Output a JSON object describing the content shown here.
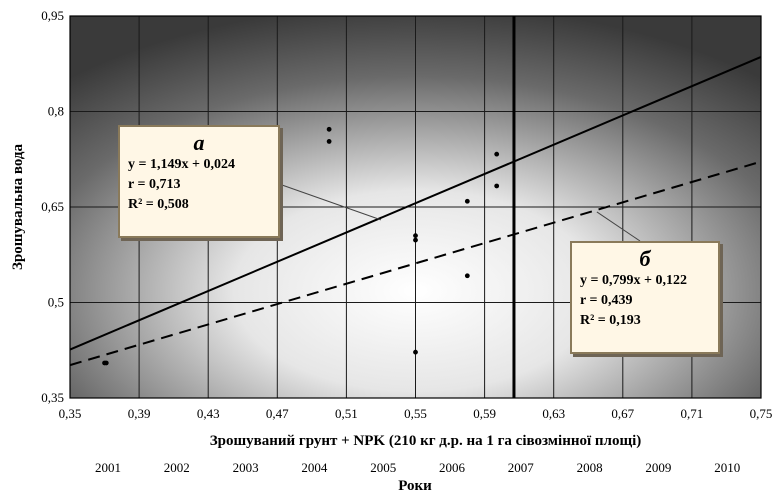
{
  "chart_data": {
    "type": "scatter",
    "xlabel": "Зрошуваний грунт + NPK (210 кг д.р. на 1 га сівозмінної площі)",
    "ylabel": "Зрошувальна  вода",
    "xlim": [
      0.35,
      0.75
    ],
    "ylim": [
      0.35,
      0.95
    ],
    "x_ticks": [
      "0,35",
      "0,39",
      "0,43",
      "0,47",
      "0,51",
      "0,55",
      "0,59",
      "0,63",
      "0,67",
      "0,71",
      "0,75"
    ],
    "y_ticks": [
      "0,35",
      "0,5",
      "0,65",
      "0,8",
      "0,95"
    ],
    "x_tick_values": [
      0.35,
      0.39,
      0.43,
      0.47,
      0.51,
      0.55,
      0.59,
      0.63,
      0.67,
      0.71,
      0.75
    ],
    "y_tick_values": [
      0.35,
      0.5,
      0.65,
      0.8,
      0.95
    ],
    "grid": true,
    "background": "dark radial gradient (gray to white center)",
    "years_label": "Роки",
    "years": [
      "2001",
      "2002",
      "2003",
      "2004",
      "2005",
      "2006",
      "2007",
      "2008",
      "2009",
      "2010"
    ],
    "vertical_marker_x": 0.607,
    "points": [
      {
        "x": 0.37,
        "y": 0.405
      },
      {
        "x": 0.371,
        "y": 0.405
      },
      {
        "x": 0.5,
        "y": 0.772
      },
      {
        "x": 0.5,
        "y": 0.753
      },
      {
        "x": 0.55,
        "y": 0.605
      },
      {
        "x": 0.55,
        "y": 0.598
      },
      {
        "x": 0.55,
        "y": 0.422
      },
      {
        "x": 0.58,
        "y": 0.659
      },
      {
        "x": 0.58,
        "y": 0.542
      },
      {
        "x": 0.597,
        "y": 0.733
      },
      {
        "x": 0.597,
        "y": 0.683
      }
    ],
    "series": [
      {
        "label": "а",
        "style": "solid",
        "slope": 1.149,
        "intercept": 0.024
      },
      {
        "label": "б",
        "style": "dashed",
        "slope": 0.799,
        "intercept": 0.122
      }
    ]
  },
  "annotations": {
    "a": {
      "letter": "а",
      "eq": "y = 1,149x + 0,024",
      "r": "r = 0,713",
      "r2": "R² = 0,508"
    },
    "b": {
      "letter": "б",
      "eq": "y = 0,799x + 0,122",
      "r": "r = 0,439",
      "r2": "R² = 0,193"
    }
  },
  "colors": {
    "line": "#000000",
    "grid": "#1a1a1a",
    "box_bg": "#fff7e6"
  }
}
